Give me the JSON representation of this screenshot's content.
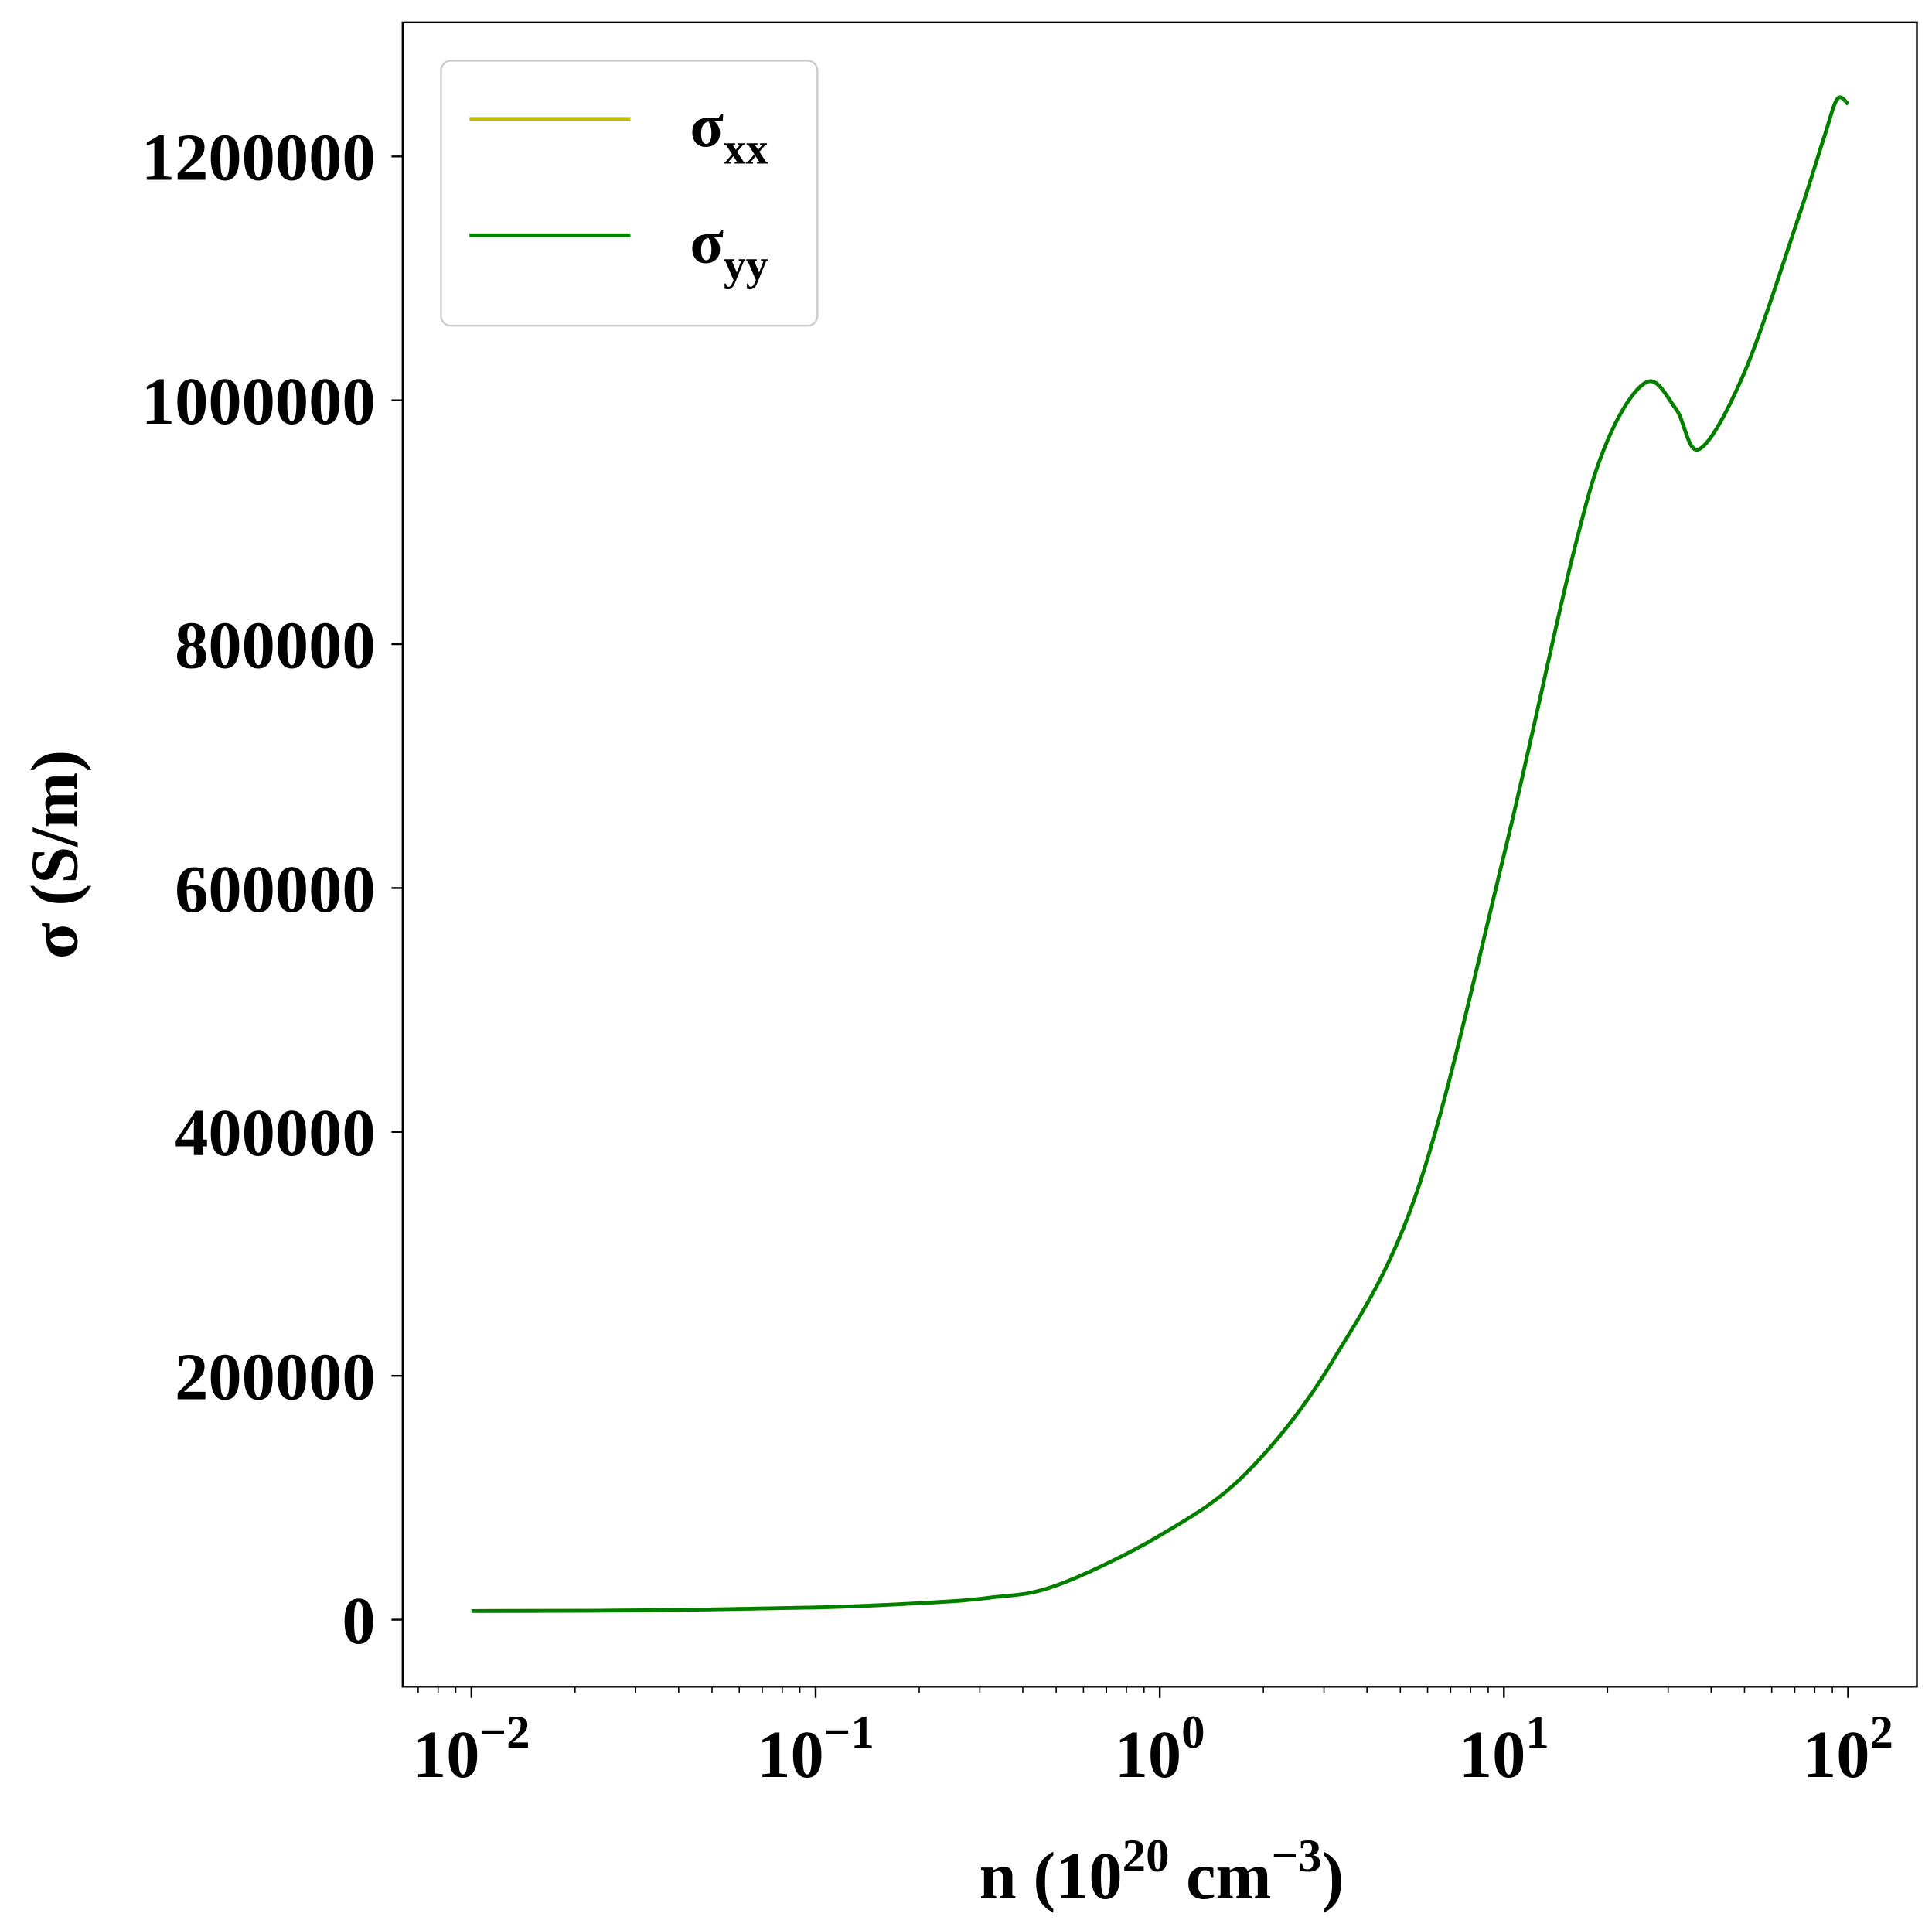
{
  "chart_data": {
    "type": "line",
    "title": "",
    "xlabel": {
      "main": "n (10",
      "sup": "20",
      "mid": " cm",
      "sup2": "−3",
      "end": ")"
    },
    "ylabel": "σ (S/m)",
    "xscale": "log",
    "xlim_log10": [
      -2.2,
      2.2
    ],
    "ylim": [
      -55000,
      1310000
    ],
    "xticks": [
      {
        "value": -2,
        "base": "10",
        "exp": "−2"
      },
      {
        "value": -1,
        "base": "10",
        "exp": "−1"
      },
      {
        "value": 0,
        "base": "10",
        "exp": "0"
      },
      {
        "value": 1,
        "base": "10",
        "exp": "1"
      },
      {
        "value": 2,
        "base": "10",
        "exp": "2"
      }
    ],
    "yticks": [
      {
        "value": 0,
        "label": "0"
      },
      {
        "value": 200000,
        "label": "200000"
      },
      {
        "value": 400000,
        "label": "400000"
      },
      {
        "value": 600000,
        "label": "600000"
      },
      {
        "value": 800000,
        "label": "800000"
      },
      {
        "value": 1000000,
        "label": "1000000"
      },
      {
        "value": 1200000,
        "label": "1200000"
      }
    ],
    "legend": {
      "placement": "top-left"
    },
    "x": [
      0.01,
      0.03,
      0.1,
      0.2,
      0.32,
      0.5,
      1.0,
      1.78,
      3.16,
      5.62,
      10,
      15.8,
      20,
      26,
      31.6,
      37,
      50,
      70.8,
      85,
      93,
      100
    ],
    "series": [
      {
        "name": "σ",
        "sub": "xx",
        "color": "#bfbf00",
        "values": [
          7100,
          7600,
          10000,
          13500,
          18000,
          28000,
          69000,
          120000,
          211000,
          353000,
          627000,
          871000,
          967000,
          1015000,
          993000,
          960000,
          1023000,
          1145000,
          1215000,
          1247000,
          1243000
        ]
      },
      {
        "name": "σ",
        "sub": "yy",
        "color": "#008000",
        "values": [
          7100,
          7600,
          10000,
          13500,
          18000,
          28000,
          69000,
          120000,
          211000,
          353000,
          627000,
          871000,
          967000,
          1015000,
          993000,
          960000,
          1023000,
          1145000,
          1215000,
          1247000,
          1243000
        ]
      }
    ]
  }
}
